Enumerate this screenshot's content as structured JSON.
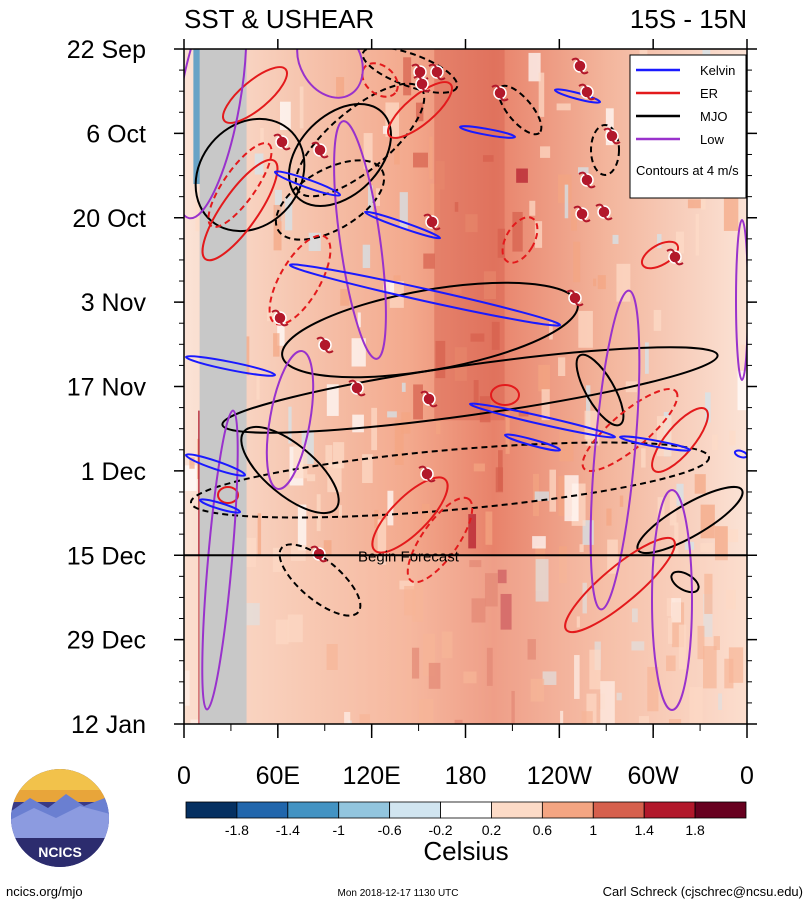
{
  "chart_data": {
    "type": "heatmap",
    "title_left": "SST & USHEAR",
    "title_right": "15S - 15N",
    "x_ticks": [
      "0",
      "60E",
      "120E",
      "180",
      "120W",
      "60W",
      "0"
    ],
    "x_tick_values": [
      0,
      60,
      120,
      180,
      240,
      300,
      360
    ],
    "x_range": [
      0,
      360
    ],
    "y_ticks": [
      "22 Sep",
      "6 Oct",
      "20 Oct",
      "3 Nov",
      "17 Nov",
      "1 Dec",
      "15 Dec",
      "29 Dec",
      "12 Jan"
    ],
    "y_tick_days": [
      0,
      14,
      28,
      42,
      56,
      70,
      84,
      98,
      112
    ],
    "y_range_days": [
      0,
      112
    ],
    "colorbar": {
      "label": "Celsius",
      "tick_labels": [
        "-1.8",
        "-1.4",
        "-1",
        "-0.6",
        "-0.2",
        "0.2",
        "0.6",
        "1",
        "1.4",
        "1.8"
      ],
      "colors": [
        "#053061",
        "#2166ac",
        "#4393c3",
        "#92c5de",
        "#d1e5f0",
        "#ffffff",
        "#fddbc7",
        "#f4a582",
        "#d6604d",
        "#b2182b",
        "#67001f"
      ]
    },
    "legend": [
      {
        "name": "Kelvin",
        "color": "#1a1aff"
      },
      {
        "name": "ER",
        "color": "#e31a1c"
      },
      {
        "name": "MJO",
        "color": "#000000"
      },
      {
        "name": "Low",
        "color": "#9932cc"
      }
    ],
    "legend_note": "Contours at 4 m/s",
    "forecast_start": {
      "label": "Begin Forecast",
      "day": 84
    },
    "land_bands_lon": [
      [
        10,
        40
      ]
    ]
  },
  "logo": {
    "text": "NCICS"
  },
  "footer": {
    "left": "ncics.org/mjo",
    "center": "Mon 2018-12-17 1130 UTC",
    "right": "Carl Schreck (cjschrec@ncsu.edu)"
  }
}
